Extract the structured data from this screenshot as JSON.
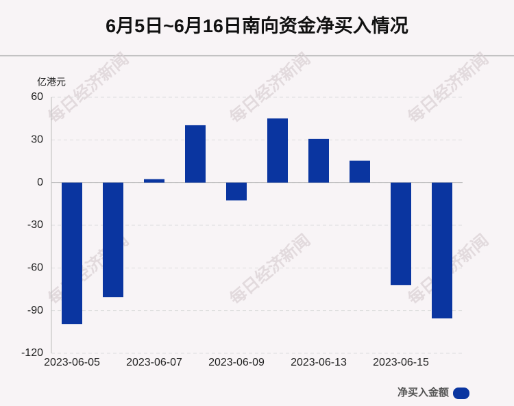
{
  "chart_data": {
    "type": "bar",
    "title": "6月5日~6月16日南向资金净买入情况",
    "y_axis_label": "亿港元",
    "watermark": "每日经济新闻",
    "categories": [
      "2023-06-05",
      null,
      "2023-06-07",
      null,
      "2023-06-09",
      null,
      "2023-06-13",
      null,
      "2023-06-15",
      null
    ],
    "series": [
      {
        "name": "净买入金额",
        "color": "#0a35a0",
        "values": [
          -99.4,
          -80.6,
          2.4,
          40.3,
          -12.5,
          45.1,
          30.7,
          15.4,
          -72.0,
          -95.5
        ]
      }
    ],
    "ylim": [
      -120,
      60
    ],
    "yticks": [
      60,
      30,
      0,
      -30,
      -60,
      -90,
      -120
    ],
    "grid": true
  }
}
